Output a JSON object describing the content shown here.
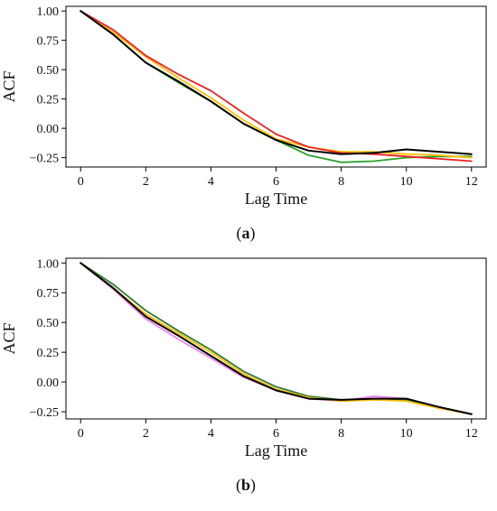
{
  "figure": {
    "panels": [
      {
        "label_prefix": "(",
        "label": "a",
        "label_suffix": ")"
      },
      {
        "label_prefix": "(",
        "label": "b",
        "label_suffix": ")"
      }
    ]
  },
  "chart_data": [
    {
      "type": "line",
      "title": "",
      "xlabel": "Lag Time",
      "ylabel": "ACF",
      "xlim": [
        -0.45,
        12.45
      ],
      "ylim": [
        -0.33,
        1.04
      ],
      "xticks": [
        0,
        2,
        4,
        6,
        8,
        10,
        12
      ],
      "yticks": [
        -0.25,
        0.0,
        0.25,
        0.5,
        0.75,
        1.0
      ],
      "ytick_labels": [
        "−0.25",
        "0.00",
        "0.25",
        "0.50",
        "0.75",
        "1.00"
      ],
      "grid": false,
      "legend": "none",
      "x": [
        0,
        1,
        2,
        3,
        4,
        5,
        6,
        7,
        8,
        9,
        10,
        11,
        12
      ],
      "series": [
        {
          "color": "#2ca02c",
          "values": [
            1.0,
            0.8,
            0.56,
            0.39,
            0.23,
            0.04,
            -0.1,
            -0.23,
            -0.29,
            -0.28,
            -0.25,
            -0.24,
            -0.24
          ]
        },
        {
          "color": "#ffbf00",
          "values": [
            1.0,
            0.82,
            0.61,
            0.43,
            0.26,
            0.07,
            -0.09,
            -0.16,
            -0.2,
            -0.2,
            -0.22,
            -0.23,
            -0.25
          ]
        },
        {
          "color": "#ee2222",
          "values": [
            1.0,
            0.84,
            0.62,
            0.46,
            0.32,
            0.13,
            -0.05,
            -0.16,
            -0.21,
            -0.22,
            -0.24,
            -0.26,
            -0.28
          ]
        },
        {
          "color": "#000000",
          "values": [
            1.0,
            0.8,
            0.56,
            0.4,
            0.23,
            0.04,
            -0.1,
            -0.19,
            -0.22,
            -0.21,
            -0.18,
            -0.2,
            -0.22
          ]
        }
      ]
    },
    {
      "type": "line",
      "title": "",
      "xlabel": "Lag Time",
      "ylabel": "ACF",
      "xlim": [
        -0.45,
        12.45
      ],
      "ylim": [
        -0.31,
        1.04
      ],
      "xticks": [
        0,
        2,
        4,
        6,
        8,
        10,
        12
      ],
      "yticks": [
        -0.25,
        0.0,
        0.25,
        0.5,
        0.75,
        1.0
      ],
      "ytick_labels": [
        "−0.25",
        "0.00",
        "0.25",
        "0.50",
        "0.75",
        "1.00"
      ],
      "grid": false,
      "legend": "none",
      "x": [
        0,
        1,
        2,
        3,
        4,
        5,
        6,
        7,
        8,
        9,
        10,
        11,
        12
      ],
      "series": [
        {
          "color": "#ee82ee",
          "values": [
            1.0,
            0.78,
            0.53,
            0.36,
            0.2,
            0.04,
            -0.07,
            -0.14,
            -0.16,
            -0.12,
            -0.14,
            -0.22,
            -0.27
          ]
        },
        {
          "color": "#2e7d32",
          "values": [
            1.0,
            0.82,
            0.6,
            0.43,
            0.27,
            0.09,
            -0.04,
            -0.12,
            -0.15,
            -0.14,
            -0.15,
            -0.21,
            -0.27
          ]
        },
        {
          "color": "#ffbf00",
          "values": [
            1.0,
            0.79,
            0.57,
            0.41,
            0.25,
            0.07,
            -0.06,
            -0.13,
            -0.16,
            -0.15,
            -0.16,
            -0.22,
            -0.27
          ]
        },
        {
          "color": "#000000",
          "values": [
            1.0,
            0.79,
            0.55,
            0.39,
            0.22,
            0.05,
            -0.07,
            -0.14,
            -0.15,
            -0.14,
            -0.14,
            -0.21,
            -0.27
          ]
        }
      ]
    }
  ]
}
